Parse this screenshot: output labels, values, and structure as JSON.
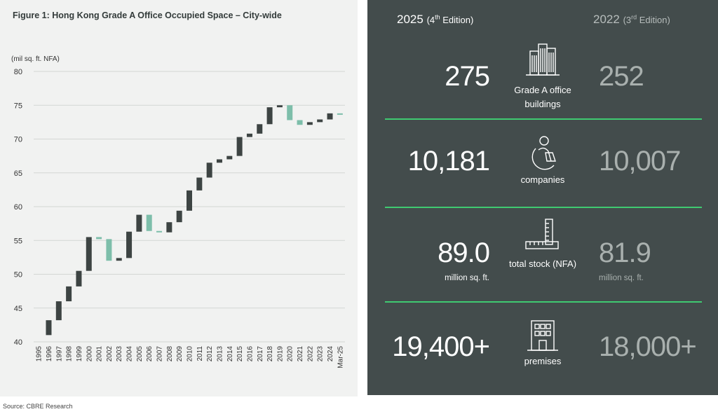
{
  "chart": {
    "title": "Figure 1:  Hong Kong Grade A Office Occupied Space – City-wide",
    "unit_label": "(mil sq. ft. NFA)"
  },
  "colors": {
    "increase": "#3d4443",
    "decrease": "#7dbeaa",
    "accent_line": "#3fca71",
    "panel_bg": "#434c4c"
  },
  "chart_data": {
    "type": "waterfall",
    "title": "Figure 1:  Hong Kong Grade A Office Occupied Space – City-wide",
    "ylabel": "(mil sq. ft. NFA)",
    "ylim": [
      40,
      80
    ],
    "yticks": [
      40,
      45,
      50,
      55,
      60,
      65,
      70,
      75,
      80
    ],
    "grid": true,
    "categories": [
      "1995",
      "1996",
      "1997",
      "1998",
      "1999",
      "2000",
      "2001",
      "2002",
      "2003",
      "2004",
      "2005",
      "2006",
      "2007",
      "2008",
      "2009",
      "2010",
      "2011",
      "2012",
      "2013",
      "2014",
      "2015",
      "2016",
      "2017",
      "2018",
      "2019",
      "2020",
      "2021",
      "2022",
      "2023",
      "2024",
      "Mar-25"
    ],
    "series": [
      {
        "start": [
          null,
          41.0,
          43.2,
          46.0,
          48.2,
          50.5,
          55.5,
          55.2,
          52.0,
          52.4,
          56.3,
          58.8,
          56.4,
          56.2,
          57.7,
          59.4,
          62.4,
          64.3,
          66.5,
          67.0,
          67.5,
          70.3,
          70.8,
          72.2,
          74.7,
          75.0,
          72.8,
          72.1,
          72.5,
          72.9,
          73.8
        ],
        "end": [
          null,
          43.2,
          46.0,
          48.2,
          50.5,
          55.5,
          55.2,
          52.0,
          52.4,
          56.3,
          58.8,
          56.4,
          56.2,
          57.7,
          59.4,
          62.4,
          64.3,
          66.5,
          67.0,
          67.5,
          70.3,
          70.8,
          72.2,
          74.7,
          75.0,
          72.8,
          72.1,
          72.5,
          72.9,
          73.8,
          73.6
        ]
      }
    ]
  },
  "stats": {
    "current_edition": {
      "year": "2025",
      "open": "(4",
      "sup": "th",
      "rest": " Edition)"
    },
    "previous_edition": {
      "year": "2022",
      "open": "(3",
      "sup": "rd",
      "rest": " Edition)"
    },
    "metrics": [
      {
        "icon": "buildings-icon",
        "label": "Grade A office buildings",
        "current": "275",
        "previous": "252",
        "unit_current": "",
        "unit_previous": ""
      },
      {
        "icon": "person-laptop-icon",
        "label": "companies",
        "current": "10,181",
        "previous": "10,007",
        "unit_current": "",
        "unit_previous": ""
      },
      {
        "icon": "ruler-icon",
        "label": "total stock (NFA)",
        "current": "89.0",
        "previous": "81.9",
        "unit_current": "million sq. ft.",
        "unit_previous": "million sq. ft."
      },
      {
        "icon": "office-building-icon",
        "label": "premises",
        "current": "19,400+",
        "previous": "18,000+",
        "unit_current": "",
        "unit_previous": ""
      }
    ]
  },
  "source": "Source: CBRE Research"
}
